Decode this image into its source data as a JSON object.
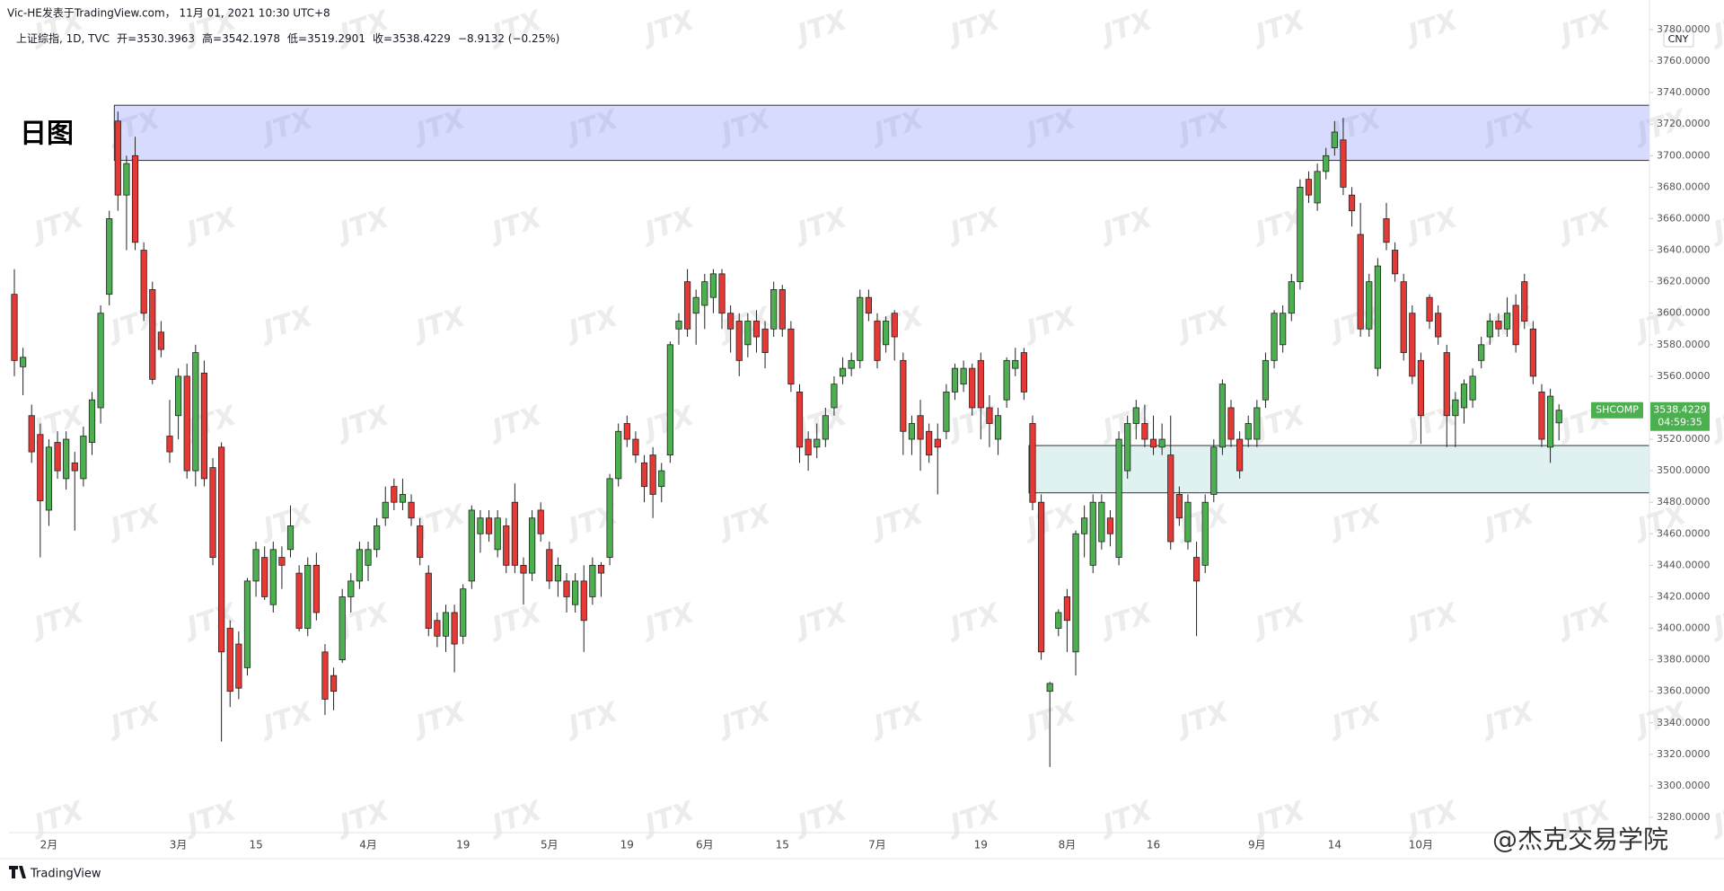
{
  "chart_data": {
    "type": "candlestick",
    "attribution": "Vic-HE发表于TradingView.com， 11月 01, 2021 10:30 UTC+8",
    "symbol": "上证综指, 1D, TVC",
    "open_label": "开=",
    "high_label": "高=",
    "low_label": "低=",
    "close_label": "收=",
    "change": "−8.9132 (−0.25%)",
    "annotation": "日图",
    "currency": "CNY",
    "ticker": "SHCOMP",
    "countdown": "04:59:35",
    "watermark": "JTX",
    "credit": "@杰克交易学院",
    "footer": "TradingView",
    "up_color": "#4caf50",
    "down_color": "#e53935",
    "categories": [
      null,
      null,
      null,
      null,
      "2月",
      null,
      null,
      null,
      null,
      null,
      null,
      null,
      null,
      null,
      null,
      null,
      null,
      null,
      null,
      "3月",
      null,
      null,
      null,
      null,
      null,
      null,
      null,
      null,
      "15",
      null,
      null,
      null,
      null,
      null,
      null,
      null,
      null,
      null,
      null,
      null,
      null,
      "4月",
      null,
      null,
      null,
      null,
      null,
      null,
      null,
      null,
      null,
      null,
      "19",
      null,
      null,
      null,
      null,
      null,
      null,
      null,
      null,
      null,
      "5月",
      null,
      null,
      null,
      null,
      null,
      null,
      null,
      null,
      "19",
      null,
      null,
      null,
      null,
      null,
      null,
      null,
      null,
      "6月",
      null,
      null,
      null,
      null,
      null,
      null,
      null,
      null,
      "15",
      null,
      null,
      null,
      null,
      null,
      null,
      null,
      null,
      null,
      null,
      "7月",
      null,
      null,
      null,
      null,
      null,
      null,
      null,
      null,
      null,
      null,
      null,
      "19",
      null,
      null,
      null,
      null,
      null,
      null,
      null,
      null,
      null,
      "8月",
      null,
      null,
      null,
      null,
      null,
      null,
      null,
      null,
      null,
      "16",
      null,
      null,
      null,
      null,
      null,
      null,
      null,
      null,
      null,
      null,
      null,
      "9月",
      null,
      null,
      null,
      null,
      null,
      null,
      null,
      null,
      "14",
      null,
      null,
      null,
      null,
      null,
      null,
      null,
      null,
      null,
      "10月",
      null,
      null,
      null,
      null,
      null,
      null,
      null,
      null,
      null,
      null,
      null,
      null,
      null,
      null,
      null,
      null
    ],
    "open": [
      3612,
      3566,
      3535,
      3523,
      3475,
      3518,
      3495,
      3505,
      3495,
      3518,
      3540,
      3612,
      3722,
      3675,
      3700,
      3640,
      3615,
      3588,
      3522,
      3535,
      3560,
      3500,
      3562,
      3502,
      3515,
      3400,
      3390,
      3375,
      3430,
      3445,
      3415,
      3445,
      3450,
      3435,
      3400,
      3440,
      3385,
      3370,
      3380,
      3420,
      3430,
      3440,
      3450,
      3470,
      3490,
      3480,
      3480,
      3465,
      3435,
      3405,
      3395,
      3410,
      3395,
      3430,
      3460,
      3470,
      3450,
      3465,
      3480,
      3440,
      3435,
      3475,
      3450,
      3430,
      3430,
      3415,
      3430,
      3420,
      3440,
      3445,
      3495,
      3530,
      3520,
      3505,
      3510,
      3490,
      3510,
      3590,
      3620,
      3600,
      3605,
      3610,
      3625,
      3600,
      3595,
      3580,
      3595,
      3590,
      3590,
      3615,
      3590,
      3550,
      3520,
      3515,
      3520,
      3540,
      3560,
      3565,
      3570,
      3610,
      3595,
      3580,
      3600,
      3570,
      3520,
      3535,
      3525,
      3520,
      3525,
      3550,
      3555,
      3565,
      3570,
      3540,
      3520,
      3545,
      3565,
      3575,
      3530,
      3480,
      3360,
      3400,
      3420,
      3385,
      3460,
      3440,
      3455,
      3470,
      3445,
      3500,
      3530,
      3530,
      3520,
      3515,
      3510,
      3485,
      3455,
      3445,
      3440,
      3485,
      3515,
      3540,
      3520,
      3520,
      3520,
      3545,
      3570,
      3580,
      3600,
      3620,
      3685,
      3670,
      3690,
      3705,
      3710,
      3675,
      3650,
      3590,
      3565,
      3660,
      3640,
      3620,
      3600,
      3570,
      3610,
      3600,
      3575,
      3535,
      3540,
      3545,
      3570,
      3585,
      3595,
      3590,
      3605,
      3620,
      3590,
      3550,
      3515,
      3530.3963
    ],
    "high": [
      3628,
      3578,
      3542,
      3530,
      3520,
      3525,
      3525,
      3512,
      3528,
      3550,
      3605,
      3665,
      3728,
      3700,
      3712,
      3645,
      3620,
      3595,
      3545,
      3565,
      3568,
      3580,
      3570,
      3508,
      3518,
      3405,
      3398,
      3432,
      3455,
      3452,
      3455,
      3452,
      3478,
      3440,
      3445,
      3448,
      3390,
      3375,
      3425,
      3435,
      3455,
      3455,
      3470,
      3490,
      3495,
      3495,
      3485,
      3470,
      3440,
      3410,
      3415,
      3415,
      3428,
      3478,
      3475,
      3475,
      3475,
      3470,
      3492,
      3445,
      3475,
      3480,
      3455,
      3445,
      3435,
      3435,
      3440,
      3445,
      3442,
      3498,
      3530,
      3535,
      3525,
      3510,
      3515,
      3505,
      3582,
      3600,
      3628,
      3615,
      3625,
      3628,
      3628,
      3605,
      3600,
      3600,
      3602,
      3595,
      3620,
      3618,
      3595,
      3555,
      3525,
      3530,
      3540,
      3560,
      3572,
      3575,
      3615,
      3615,
      3600,
      3598,
      3602,
      3575,
      3535,
      3545,
      3530,
      3530,
      3555,
      3568,
      3570,
      3568,
      3575,
      3548,
      3540,
      3572,
      3578,
      3578,
      3535,
      3485,
      3366,
      3412,
      3425,
      3462,
      3478,
      3485,
      3485,
      3475,
      3525,
      3535,
      3545,
      3542,
      3535,
      3530,
      3535,
      3490,
      3485,
      3455,
      3485,
      3520,
      3558,
      3545,
      3525,
      3535,
      3545,
      3575,
      3602,
      3605,
      3625,
      3685,
      3690,
      3695,
      3705,
      3722,
      3724,
      3680,
      3670,
      3625,
      3635,
      3670,
      3645,
      3625,
      3605,
      3575,
      3612,
      3605,
      3580,
      3550,
      3558,
      3565,
      3585,
      3600,
      3600,
      3610,
      3612,
      3625,
      3595,
      3555,
      3552,
      3542.1978
    ],
    "low": [
      3560,
      3548,
      3505,
      3445,
      3465,
      3495,
      3488,
      3462,
      3490,
      3510,
      3530,
      3605,
      3665,
      3640,
      3640,
      3595,
      3555,
      3572,
      3505,
      3520,
      3495,
      3490,
      3490,
      3440,
      3328,
      3350,
      3355,
      3370,
      3420,
      3418,
      3410,
      3425,
      3445,
      3398,
      3395,
      3405,
      3345,
      3348,
      3378,
      3410,
      3425,
      3430,
      3445,
      3465,
      3475,
      3475,
      3465,
      3440,
      3395,
      3388,
      3385,
      3372,
      3390,
      3425,
      3448,
      3455,
      3445,
      3435,
      3435,
      3415,
      3430,
      3455,
      3425,
      3420,
      3410,
      3410,
      3385,
      3415,
      3420,
      3440,
      3490,
      3515,
      3505,
      3480,
      3470,
      3480,
      3505,
      3580,
      3585,
      3580,
      3590,
      3600,
      3590,
      3575,
      3560,
      3572,
      3575,
      3565,
      3585,
      3585,
      3550,
      3505,
      3500,
      3508,
      3515,
      3535,
      3555,
      3560,
      3565,
      3595,
      3565,
      3575,
      3570,
      3510,
      3510,
      3500,
      3505,
      3485,
      3520,
      3545,
      3550,
      3535,
      3520,
      3515,
      3510,
      3540,
      3560,
      3545,
      3475,
      3380,
      3312,
      3395,
      3385,
      3370,
      3445,
      3435,
      3450,
      3452,
      3440,
      3495,
      3520,
      3515,
      3510,
      3510,
      3450,
      3465,
      3450,
      3395,
      3435,
      3480,
      3510,
      3515,
      3495,
      3515,
      3515,
      3540,
      3565,
      3575,
      3595,
      3615,
      3670,
      3665,
      3685,
      3700,
      3675,
      3655,
      3585,
      3585,
      3560,
      3640,
      3620,
      3570,
      3555,
      3517,
      3590,
      3580,
      3515,
      3515,
      3530,
      3540,
      3565,
      3580,
      3585,
      3585,
      3575,
      3590,
      3555,
      3515,
      3505,
      3519.2901
    ],
    "close": [
      3570,
      3572,
      3512,
      3481,
      3515,
      3500,
      3520,
      3500,
      3522,
      3545,
      3600,
      3660,
      3675,
      3695,
      3645,
      3600,
      3558,
      3577,
      3512,
      3560,
      3500,
      3575,
      3495,
      3445,
      3385,
      3360,
      3362,
      3430,
      3450,
      3420,
      3450,
      3440,
      3465,
      3400,
      3440,
      3410,
      3355,
      3360,
      3420,
      3430,
      3450,
      3450,
      3465,
      3480,
      3480,
      3485,
      3470,
      3445,
      3400,
      3395,
      3410,
      3390,
      3425,
      3475,
      3470,
      3460,
      3470,
      3440,
      3440,
      3435,
      3470,
      3460,
      3430,
      3440,
      3420,
      3430,
      3405,
      3440,
      3435,
      3495,
      3525,
      3520,
      3510,
      3490,
      3485,
      3500,
      3580,
      3595,
      3590,
      3610,
      3620,
      3625,
      3600,
      3590,
      3570,
      3595,
      3585,
      3575,
      3615,
      3590,
      3555,
      3515,
      3510,
      3520,
      3535,
      3555,
      3565,
      3570,
      3610,
      3600,
      3570,
      3595,
      3585,
      3525,
      3530,
      3520,
      3510,
      3515,
      3550,
      3565,
      3565,
      3540,
      3540,
      3530,
      3535,
      3570,
      3570,
      3550,
      3480,
      3385,
      3365,
      3410,
      3405,
      3460,
      3470,
      3480,
      3480,
      3460,
      3520,
      3530,
      3540,
      3520,
      3515,
      3520,
      3455,
      3470,
      3480,
      3430,
      3480,
      3515,
      3555,
      3520,
      3500,
      3530,
      3540,
      3570,
      3600,
      3600,
      3620,
      3680,
      3675,
      3690,
      3700,
      3715,
      3680,
      3665,
      3590,
      3620,
      3630,
      3645,
      3625,
      3575,
      3560,
      3535,
      3595,
      3585,
      3535,
      3545,
      3555,
      3560,
      3580,
      3595,
      3590,
      3600,
      3580,
      3595,
      3560,
      3520,
      3547.3361,
      3538.4229
    ],
    "zones": [
      {
        "top": 3732,
        "bottom": 3697,
        "from": 12,
        "color": "rgba(110,130,255,0.28)"
      },
      {
        "top": 3516,
        "bottom": 3486,
        "from": 118,
        "color": "rgba(150,210,210,0.3)"
      }
    ],
    "ylim": [
      3280,
      3780
    ],
    "yticks": [
      {
        "value": 3280,
        "label": "3280.0000"
      },
      {
        "value": 3300,
        "label": "3300.0000"
      },
      {
        "value": 3320,
        "label": "3320.0000"
      },
      {
        "value": 3340,
        "label": "3340.0000"
      },
      {
        "value": 3360,
        "label": "3360.0000"
      },
      {
        "value": 3380,
        "label": "3380.0000"
      },
      {
        "value": 3400,
        "label": "3400.0000"
      },
      {
        "value": 3420,
        "label": "3420.0000"
      },
      {
        "value": 3440,
        "label": "3440.0000"
      },
      {
        "value": 3460,
        "label": "3460.0000"
      },
      {
        "value": 3480,
        "label": "3480.0000"
      },
      {
        "value": 3500,
        "label": "3500.0000"
      },
      {
        "value": 3520,
        "label": "3520.0000"
      },
      {
        "value": 3540,
        "label": "3540.0000"
      },
      {
        "value": 3560,
        "label": "3560.0000"
      },
      {
        "value": 3580,
        "label": "3580.0000"
      },
      {
        "value": 3600,
        "label": "3600.0000"
      },
      {
        "value": 3620,
        "label": "3620.0000"
      },
      {
        "value": 3640,
        "label": "3640.0000"
      },
      {
        "value": 3660,
        "label": "3660.0000"
      },
      {
        "value": 3680,
        "label": "3680.0000"
      },
      {
        "value": 3700,
        "label": "3700.0000"
      },
      {
        "value": 3720,
        "label": "3720.0000"
      },
      {
        "value": 3740,
        "label": "3740.0000"
      },
      {
        "value": 3760,
        "label": "3760.0000"
      },
      {
        "value": 3780,
        "label": "3780.0000"
      }
    ],
    "grid": false
  }
}
